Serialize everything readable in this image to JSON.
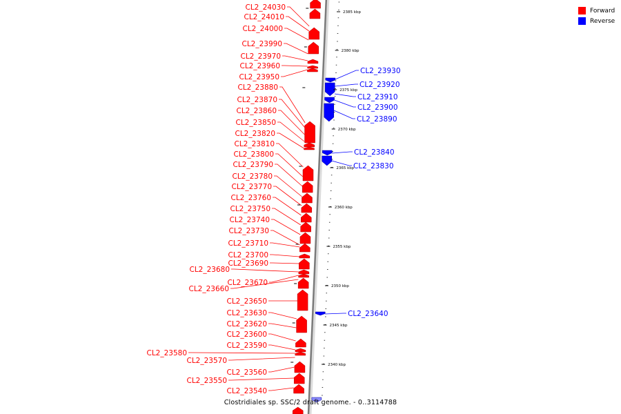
{
  "legend": {
    "forward": {
      "label": "Forward",
      "color": "#ff0000"
    },
    "reverse": {
      "label": "Reverse",
      "color": "#0000ff"
    }
  },
  "caption": "Clostridiales sp. SSC/2 draft genome. - 0..3114788",
  "ruler_labels": [
    "2385 kbp",
    "2380 kbp",
    "2375 kbp",
    "2370 kbp",
    "2365 kbp",
    "2360 kbp",
    "2355 kbp",
    "2350 kbp",
    "2345 kbp",
    "2340 kbp"
  ],
  "forward_genes": [
    "CL2_24030",
    "CL2_24010",
    "CL2_24000",
    "CL2_23990",
    "CL2_23970",
    "CL2_23960",
    "CL2_23950",
    "CL2_23880",
    "CL2_23870",
    "CL2_23860",
    "CL2_23850",
    "CL2_23820",
    "CL2_23810",
    "CL2_23800",
    "CL2_23790",
    "CL2_23780",
    "CL2_23770",
    "CL2_23760",
    "CL2_23750",
    "CL2_23740",
    "CL2_23730",
    "CL2_23710",
    "CL2_23700",
    "CL2_23690",
    "CL2_23680",
    "CL2_23670",
    "CL2_23660",
    "CL2_23650",
    "CL2_23630",
    "CL2_23620",
    "CL2_23600",
    "CL2_23590",
    "CL2_23580",
    "CL2_23570",
    "CL2_23560",
    "CL2_23550",
    "CL2_23540"
  ],
  "reverse_genes": [
    "CL2_23930",
    "CL2_23920",
    "CL2_23910",
    "CL2_23900",
    "CL2_23890",
    "CL2_23840",
    "CL2_23830",
    "CL2_23640"
  ]
}
